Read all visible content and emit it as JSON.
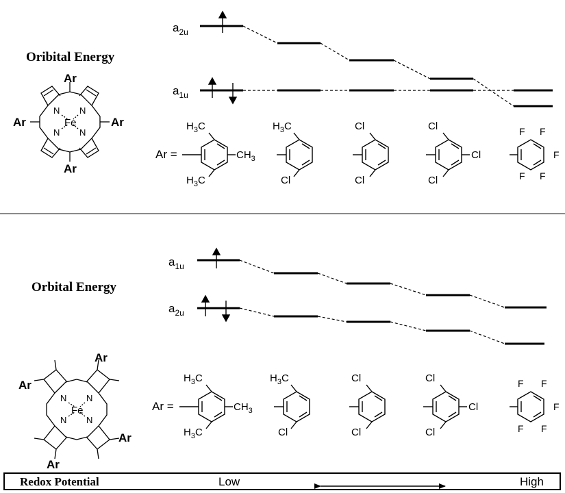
{
  "top": {
    "orbital_label": "Oribital Energy",
    "levels": [
      {
        "name": "a",
        "sub": "2u"
      },
      {
        "name": "a",
        "sub": "1u"
      }
    ],
    "porphyrin": {
      "metal": "Fe",
      "nitrogen": "N",
      "aryl": "Ar"
    }
  },
  "bottom": {
    "orbital_label": "Orbital Energy",
    "levels": [
      {
        "name": "a",
        "sub": "1u"
      },
      {
        "name": "a",
        "sub": "2u"
      }
    ],
    "porphyrin": {
      "metal": "Fe",
      "nitrogen": "N",
      "aryl": "Ar"
    }
  },
  "ar_eq": "Ar =",
  "substituents": {
    "mesityl": {
      "top": [
        "H",
        "3",
        "C"
      ],
      "right": [
        "CH",
        "3"
      ],
      "bottom": [
        "H",
        "3",
        "C"
      ]
    },
    "chloromethyl": {
      "top": [
        "H",
        "3",
        "C"
      ],
      "bottom": "Cl"
    },
    "dichloro": {
      "top": "Cl",
      "bottom": "Cl"
    },
    "trichloro": {
      "top": "Cl",
      "right": "Cl",
      "bottom": "Cl"
    },
    "pentafluoro": {
      "f": "F"
    }
  },
  "footer": {
    "title": "Redox Potential",
    "low": "Low",
    "high": "High"
  }
}
